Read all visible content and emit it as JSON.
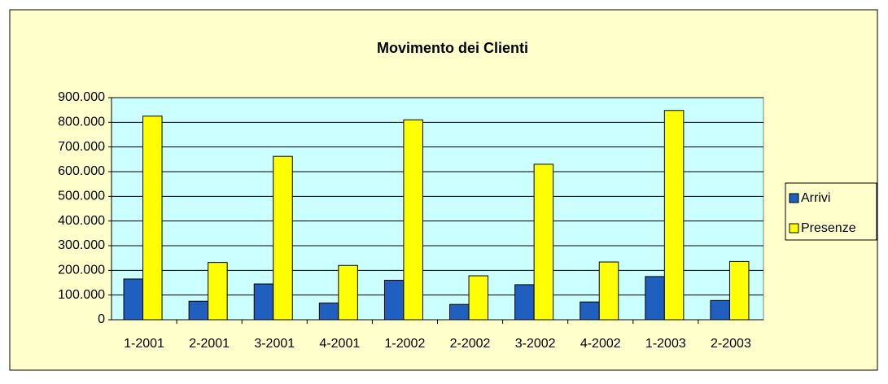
{
  "chart_data": {
    "type": "bar",
    "title": "Movimento dei Clienti",
    "categories": [
      "1-2001",
      "2-2001",
      "3-2001",
      "4-2001",
      "1-2002",
      "2-2002",
      "3-2002",
      "4-2002",
      "1-2003",
      "2-2003"
    ],
    "series": [
      {
        "name": "Arrivi",
        "color": "#1f5fc0",
        "values": [
          165000,
          75000,
          145000,
          68000,
          160000,
          62000,
          142000,
          72000,
          175000,
          78000
        ]
      },
      {
        "name": "Presenze",
        "color": "#ffff00",
        "values": [
          825000,
          232000,
          662000,
          220000,
          810000,
          178000,
          630000,
          234000,
          848000,
          236000
        ]
      }
    ],
    "ylim": [
      0,
      900000
    ],
    "yticks": [
      {
        "value": 0,
        "label": "0"
      },
      {
        "value": 100000,
        "label": "100.000"
      },
      {
        "value": 200000,
        "label": "200.000"
      },
      {
        "value": 300000,
        "label": "300.000"
      },
      {
        "value": 400000,
        "label": "400.000"
      },
      {
        "value": 500000,
        "label": "500.000"
      },
      {
        "value": 600000,
        "label": "600.000"
      },
      {
        "value": 700000,
        "label": "700.000"
      },
      {
        "value": 800000,
        "label": "800.000"
      },
      {
        "value": 900000,
        "label": "900.000"
      }
    ],
    "grid": true,
    "legend": "right"
  }
}
